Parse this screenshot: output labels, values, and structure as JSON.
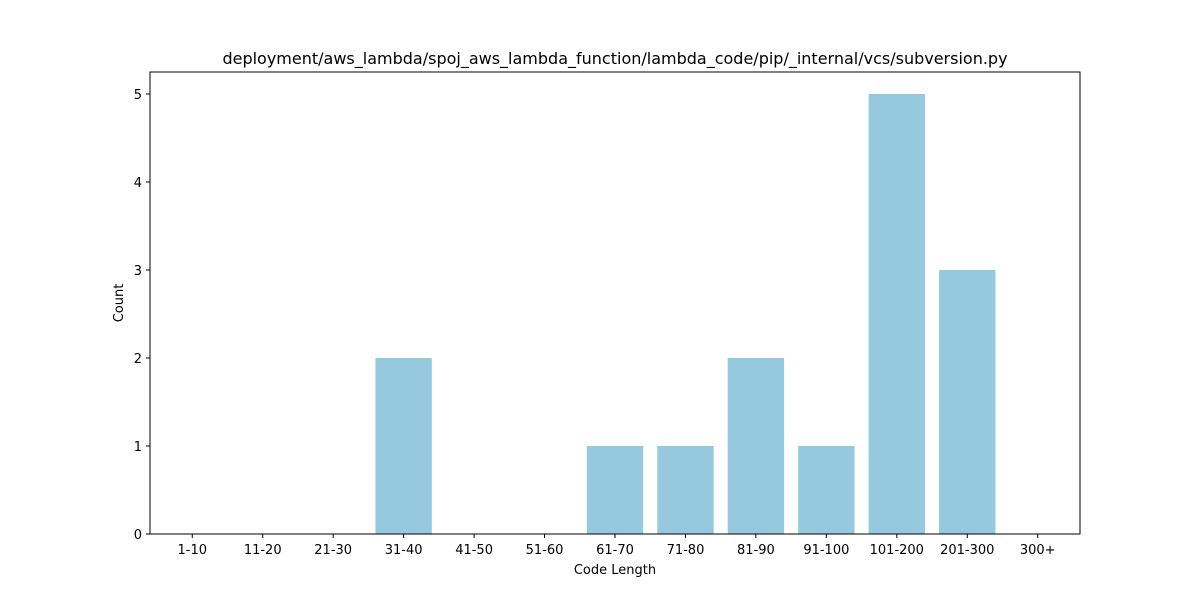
{
  "chart_data": {
    "type": "bar",
    "title": "deployment/aws_lambda/spoj_aws_lambda_function/lambda_code/pip/_internal/vcs/subversion.py",
    "xlabel": "Code Length",
    "ylabel": "Count",
    "categories": [
      "1-10",
      "11-20",
      "21-30",
      "31-40",
      "41-50",
      "51-60",
      "61-70",
      "71-80",
      "81-90",
      "91-100",
      "101-200",
      "201-300",
      "300+"
    ],
    "values": [
      0,
      0,
      0,
      2,
      0,
      0,
      1,
      1,
      2,
      1,
      5,
      3,
      0
    ],
    "ylim": [
      0,
      5.25
    ],
    "yticks": [
      0,
      1,
      2,
      3,
      4,
      5
    ],
    "bar_color": "#96c9de",
    "grid": false,
    "legend": "none"
  }
}
